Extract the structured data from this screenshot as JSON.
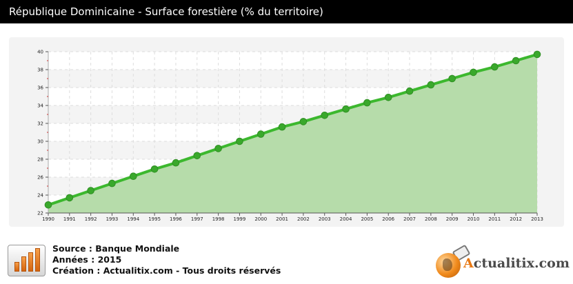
{
  "title": "République Dominicaine - Surface forestière (% du territoire)",
  "footer": {
    "source": "Source : Banque Mondiale",
    "annees": "Années : 2015",
    "creation": "Création : Actualitix.com - Tous droits réservés"
  },
  "logo": {
    "initial": "A",
    "rest": "ctualitix.com"
  },
  "colors": {
    "line": "#3cb82e",
    "marker": "#3aa82c",
    "area": "#b6dcaa",
    "title_bg": "#000000",
    "logo_orange": "#e87812"
  },
  "chart_data": {
    "type": "area",
    "title": "",
    "xlabel": "",
    "ylabel": "",
    "ylim": [
      22,
      40
    ],
    "yticks": [
      22,
      24,
      26,
      28,
      30,
      32,
      34,
      36,
      38,
      40
    ],
    "grid": true,
    "legend": "none",
    "series": [
      {
        "x": [
          1990,
          1991,
          1992,
          1993,
          1994,
          1995,
          1996,
          1997,
          1998,
          1999,
          2000,
          2001,
          2002,
          2003,
          2004,
          2005,
          2006,
          2007,
          2008,
          2009,
          2010,
          2011,
          2012,
          2013
        ],
        "values": [
          22.9,
          23.7,
          24.5,
          25.3,
          26.1,
          26.9,
          27.6,
          28.4,
          29.2,
          30.0,
          30.8,
          31.6,
          32.2,
          32.9,
          33.6,
          34.3,
          34.9,
          35.6,
          36.3,
          37.0,
          37.7,
          38.3,
          39.0,
          39.7
        ]
      }
    ]
  }
}
